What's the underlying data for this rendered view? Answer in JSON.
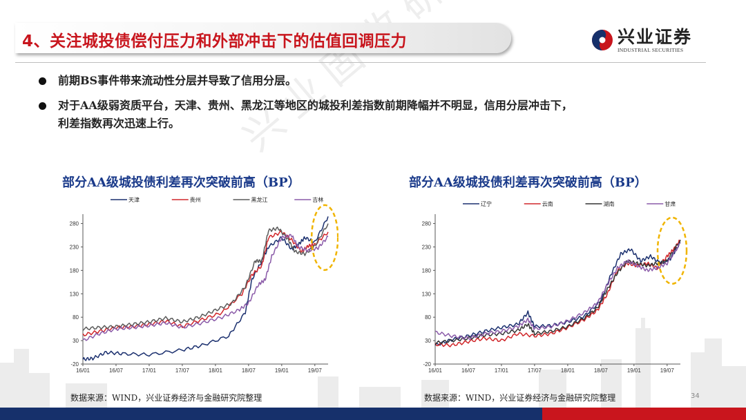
{
  "header": {
    "title": "4、关注城投债偿付压力和外部冲击下的估值回调压力",
    "logo_name": "兴业证券",
    "logo_sub": "INDUSTRIAL SECURITIES"
  },
  "watermark": "兴业固收研究",
  "bullets": [
    {
      "line1": "前期BS事件带来流动性分层并导致了信用分层。",
      "line2": ""
    },
    {
      "line1": "对于AA级弱资质平台，天津、贵州、黑龙江等地区的城投利差指数前期降幅并不明显，信用分层冲击下，",
      "line2": "利差指数再次迅速上行。"
    }
  ],
  "page_number": "34",
  "colors": {
    "accent_red": "#c8151d",
    "navy": "#16306b",
    "title_blue": "#1a3a8a",
    "highlight": "#f0b400"
  },
  "chart_data": [
    {
      "type": "line",
      "title": "部分AA级城投债利差再次突破前高（BP）",
      "source": "数据来源：WIND，兴业证券经济与金融研究院整理",
      "x_ticks": [
        "16/01",
        "16/07",
        "17/01",
        "17/07",
        "18/01",
        "18/07",
        "19/01",
        "19/07"
      ],
      "y_ticks": [
        "-20",
        "30",
        "80",
        "130",
        "180",
        "230",
        "280"
      ],
      "ylim": [
        -20,
        300
      ],
      "grid": false,
      "legend": "top",
      "series": [
        {
          "name": "天津",
          "color": "#1a2f6e",
          "x": [
            0,
            0.3,
            0.7,
            1.2,
            2.0,
            3.0,
            3.6,
            4.4,
            4.9,
            5.1,
            5.4,
            5.6,
            6.0,
            6.3,
            6.5,
            6.7,
            7.0,
            7.4
          ],
          "values": [
            -10,
            -8,
            5,
            2,
            0,
            10,
            20,
            40,
            90,
            160,
            200,
            230,
            250,
            225,
            235,
            250,
            240,
            295
          ]
        },
        {
          "name": "贵州",
          "color": "#d0262a",
          "x": [
            0,
            0.5,
            1.0,
            1.5,
            2.0,
            2.5,
            3.0,
            3.6,
            4.2,
            4.8,
            5.1,
            5.4,
            5.6,
            6.0,
            6.3,
            6.6,
            6.8,
            7.0,
            7.4
          ],
          "values": [
            42,
            50,
            58,
            60,
            65,
            72,
            60,
            75,
            90,
            130,
            170,
            190,
            250,
            262,
            245,
            220,
            232,
            235,
            262
          ]
        },
        {
          "name": "黑龙江",
          "color": "#5a5a5a",
          "x": [
            0,
            0.5,
            1.0,
            1.5,
            2.0,
            2.5,
            3.0,
            3.5,
            4.0,
            4.5,
            4.9,
            5.2,
            5.4,
            5.6,
            5.9,
            6.2,
            6.4,
            6.7,
            7.0,
            7.4
          ],
          "values": [
            55,
            58,
            60,
            65,
            70,
            78,
            70,
            80,
            95,
            110,
            145,
            200,
            200,
            265,
            270,
            245,
            220,
            215,
            232,
            280
          ]
        },
        {
          "name": "吉林",
          "color": "#8a5aa8",
          "x": [
            0,
            0.5,
            1.0,
            1.5,
            2.0,
            2.5,
            3.0,
            3.6,
            4.2,
            4.7,
            5.0,
            5.3,
            5.5,
            5.7,
            6.0,
            6.3,
            6.5,
            6.8,
            7.1,
            7.4
          ],
          "values": [
            30,
            45,
            55,
            58,
            62,
            68,
            58,
            68,
            80,
            95,
            110,
            150,
            160,
            210,
            250,
            255,
            230,
            222,
            228,
            252
          ]
        }
      ]
    },
    {
      "type": "line",
      "title": "部分AA级城投债利差再次突破前高（BP）",
      "source": "数据来源：WIND，兴业证券经济与金融研究院整理",
      "x_ticks": [
        "16/01",
        "16/07",
        "17/01",
        "17/07",
        "18/01",
        "18/07",
        "19/01",
        "19/07"
      ],
      "y_ticks": [
        "-20",
        "30",
        "80",
        "130",
        "180",
        "230",
        "280"
      ],
      "ylim": [
        -20,
        300
      ],
      "grid": false,
      "legend": "top",
      "series": [
        {
          "name": "辽宁",
          "color": "#1a2f6e",
          "x": [
            0,
            0.5,
            1.0,
            1.5,
            2.0,
            2.5,
            2.8,
            3.0,
            3.5,
            4.0,
            4.5,
            5.0,
            5.3,
            5.6,
            5.9,
            6.2,
            6.5,
            6.8,
            7.1,
            7.4
          ],
          "values": [
            20,
            32,
            40,
            50,
            58,
            65,
            90,
            60,
            62,
            70,
            82,
            115,
            170,
            215,
            225,
            200,
            210,
            195,
            205,
            240
          ]
        },
        {
          "name": "云南",
          "color": "#d0262a",
          "x": [
            0,
            0.5,
            1.0,
            1.5,
            2.0,
            2.5,
            3.0,
            3.5,
            4.0,
            4.5,
            4.9,
            5.2,
            5.5,
            5.8,
            6.1,
            6.4,
            6.7,
            7.0,
            7.2,
            7.4
          ],
          "values": [
            22,
            20,
            28,
            35,
            30,
            45,
            40,
            45,
            58,
            75,
            95,
            130,
            180,
            195,
            190,
            195,
            185,
            210,
            225,
            245
          ]
        },
        {
          "name": "湖南",
          "color": "#333333",
          "x": [
            0,
            0.5,
            1.0,
            1.5,
            2.0,
            2.5,
            2.8,
            3.0,
            3.5,
            4.0,
            4.5,
            4.9,
            5.2,
            5.5,
            5.8,
            6.1,
            6.4,
            6.7,
            7.0,
            7.4
          ],
          "values": [
            25,
            30,
            35,
            42,
            45,
            52,
            65,
            45,
            50,
            60,
            78,
            100,
            140,
            175,
            200,
            195,
            190,
            195,
            200,
            245
          ]
        },
        {
          "name": "甘肃",
          "color": "#8a5aa8",
          "x": [
            0,
            0.5,
            1.0,
            1.5,
            2.0,
            2.5,
            2.8,
            3.0,
            3.5,
            4.0,
            4.5,
            4.9,
            5.2,
            5.5,
            5.8,
            6.1,
            6.4,
            6.7,
            7.0,
            7.4
          ],
          "values": [
            48,
            40,
            35,
            45,
            50,
            60,
            75,
            55,
            60,
            72,
            90,
            110,
            150,
            185,
            200,
            190,
            180,
            185,
            195,
            238
          ]
        }
      ]
    }
  ]
}
